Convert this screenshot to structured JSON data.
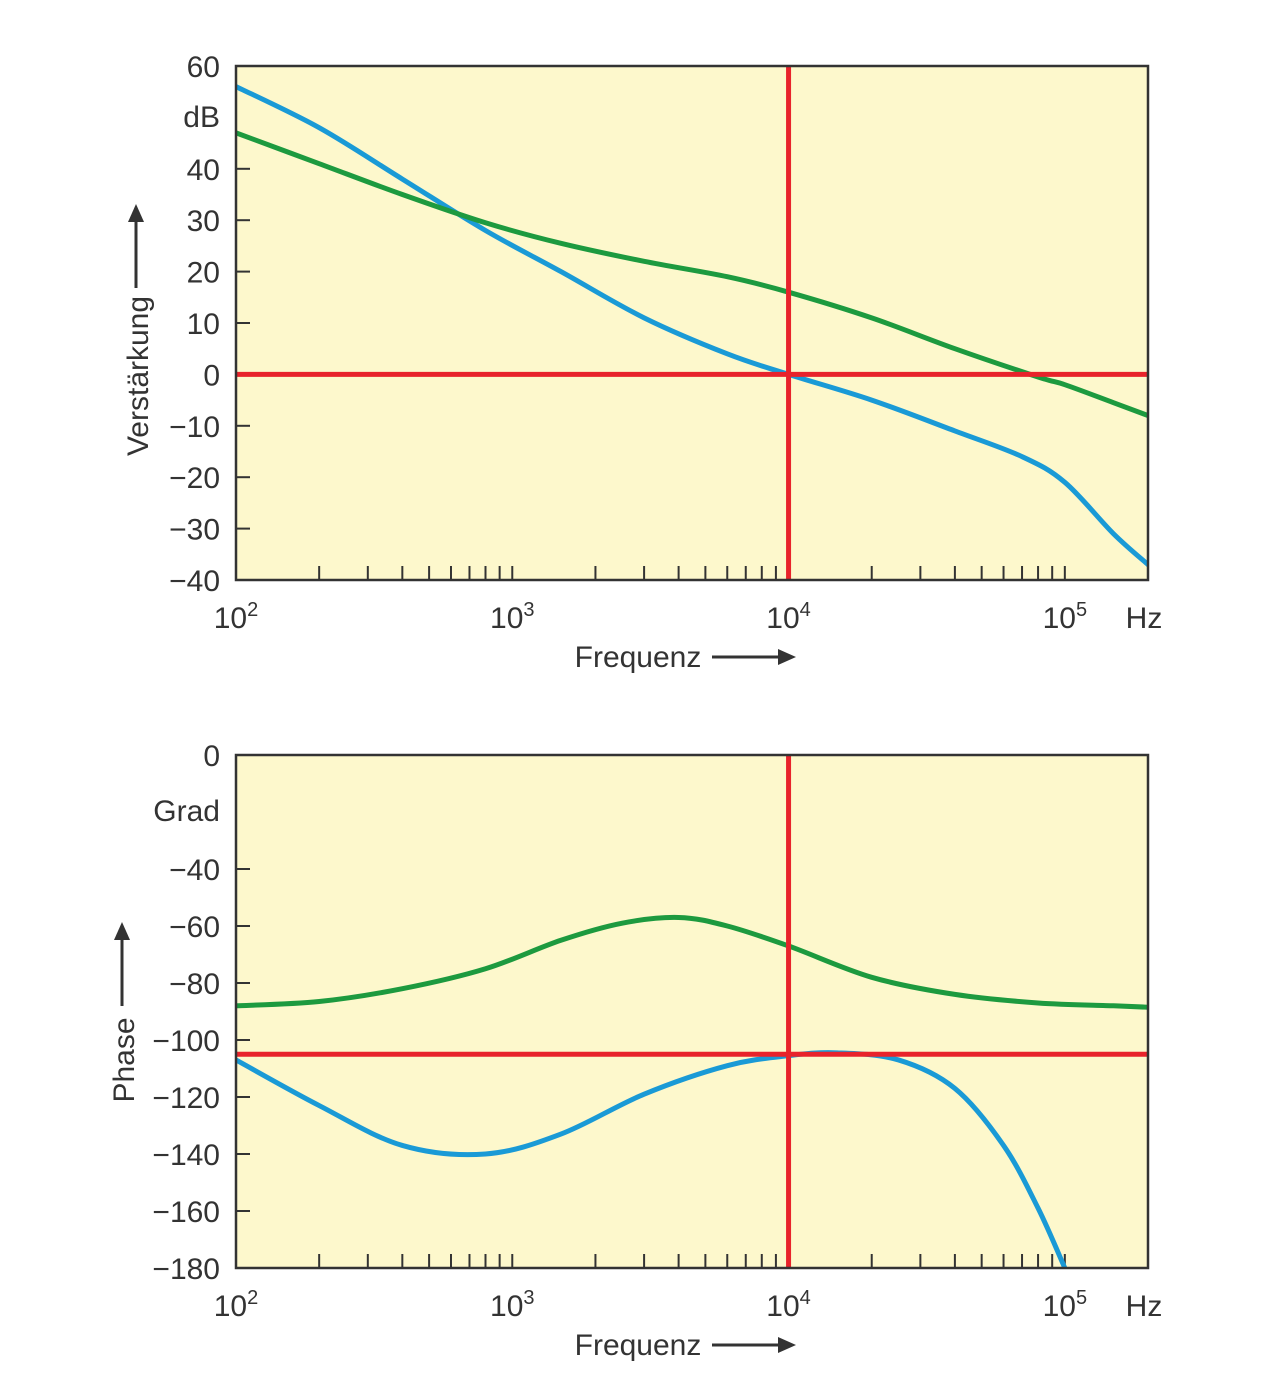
{
  "colors": {
    "plot_bg": "#fdf8cc",
    "frame": "#333333",
    "reference": "#e8232b",
    "series_blue": "#1a9ad6",
    "series_green": "#1d9a3f",
    "text": "#333333"
  },
  "chart_data": [
    {
      "type": "line",
      "title": "",
      "xscale": "log",
      "xlim": [
        100,
        200000
      ],
      "ylim": [
        -40,
        60
      ],
      "xlabel": "Frequenz",
      "xunit": "Hz",
      "ylabel": "Verstärkung",
      "yunit": "dB",
      "yticks": [
        {
          "v": 60,
          "label": "60"
        },
        {
          "v": 40,
          "label": "40"
        },
        {
          "v": 30,
          "label": "30"
        },
        {
          "v": 20,
          "label": "20"
        },
        {
          "v": 10,
          "label": "10"
        },
        {
          "v": 0,
          "label": "0"
        },
        {
          "v": -10,
          "label": "−10"
        },
        {
          "v": -20,
          "label": "−20"
        },
        {
          "v": -30,
          "label": "−30"
        },
        {
          "v": -40,
          "label": "−40"
        }
      ],
      "xticks": [
        {
          "v": 100,
          "base": "10",
          "exp": "2"
        },
        {
          "v": 1000,
          "base": "10",
          "exp": "3"
        },
        {
          "v": 10000,
          "base": "10",
          "exp": "4"
        },
        {
          "v": 100000,
          "base": "10",
          "exp": "5"
        }
      ],
      "reference_lines": {
        "x": 10000,
        "y": 0
      },
      "series": [
        {
          "name": "blue",
          "x": [
            100,
            200,
            400,
            800,
            1500,
            3000,
            6000,
            10000,
            20000,
            40000,
            70000,
            100000,
            150000,
            200000
          ],
          "y": [
            56,
            48,
            38,
            28,
            20,
            11,
            4,
            0,
            -5,
            -11,
            -16,
            -21,
            -31,
            -37
          ]
        },
        {
          "name": "green",
          "x": [
            100,
            200,
            400,
            800,
            1500,
            3000,
            6000,
            10000,
            20000,
            40000,
            80000,
            100000,
            150000,
            200000
          ],
          "y": [
            47,
            41,
            35,
            29.5,
            25.5,
            22,
            19,
            16,
            11,
            5,
            -0.5,
            -2,
            -5.5,
            -8
          ]
        }
      ]
    },
    {
      "type": "line",
      "title": "",
      "xscale": "log",
      "xlim": [
        100,
        200000
      ],
      "ylim": [
        -180,
        0
      ],
      "xlabel": "Frequenz",
      "xunit": "Hz",
      "ylabel": "Phase",
      "yunit": "Grad",
      "yticks": [
        {
          "v": 0,
          "label": "0"
        },
        {
          "v": -40,
          "label": "−40"
        },
        {
          "v": -60,
          "label": "−60"
        },
        {
          "v": -80,
          "label": "−80"
        },
        {
          "v": -100,
          "label": "−100"
        },
        {
          "v": -120,
          "label": "−120"
        },
        {
          "v": -140,
          "label": "−140"
        },
        {
          "v": -160,
          "label": "−160"
        },
        {
          "v": -180,
          "label": "−180"
        }
      ],
      "xticks": [
        {
          "v": 100,
          "base": "10",
          "exp": "2"
        },
        {
          "v": 1000,
          "base": "10",
          "exp": "3"
        },
        {
          "v": 10000,
          "base": "10",
          "exp": "4"
        },
        {
          "v": 100000,
          "base": "10",
          "exp": "5"
        }
      ],
      "reference_lines": {
        "x": 10000,
        "y": -105
      },
      "series": [
        {
          "name": "green",
          "x": [
            100,
            200,
            400,
            800,
            1500,
            2500,
            4000,
            6000,
            10000,
            20000,
            40000,
            80000,
            150000,
            200000
          ],
          "y": [
            -88,
            -86.5,
            -82,
            -75,
            -65,
            -59,
            -57,
            -60,
            -67,
            -78,
            -84,
            -87,
            -88,
            -88.5
          ]
        },
        {
          "name": "blue",
          "x": [
            100,
            200,
            400,
            800,
            1500,
            3000,
            6000,
            10000,
            15000,
            25000,
            40000,
            60000,
            80000,
            100000
          ],
          "y": [
            -107,
            -123,
            -137,
            -140,
            -133,
            -119,
            -109,
            -105.5,
            -104.5,
            -107,
            -117,
            -137,
            -159,
            -180
          ]
        }
      ]
    }
  ]
}
